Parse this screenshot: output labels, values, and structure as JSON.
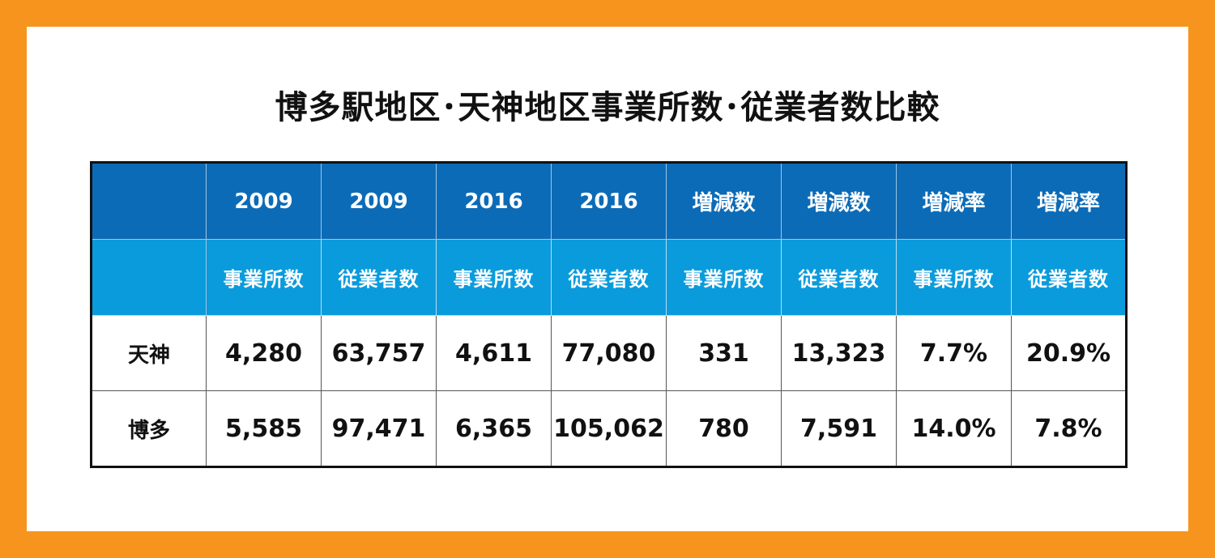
{
  "chart_data": {
    "type": "table",
    "title": "博多駅地区･天神地区事業所数･従業者数比較",
    "header_row_1": [
      "",
      "2009",
      "2009",
      "2016",
      "2016",
      "増減数",
      "増減数",
      "増減率",
      "増減率"
    ],
    "header_row_2": [
      "",
      "事業所数",
      "従業者数",
      "事業所数",
      "従業者数",
      "事業所数",
      "従業者数",
      "事業所数",
      "従業者数"
    ],
    "rows": [
      {
        "label": "天神",
        "cells": [
          "4,280",
          "63,757",
          "4,611",
          "77,080",
          "331",
          "13,323",
          "7.7%",
          "20.9%"
        ]
      },
      {
        "label": "博多",
        "cells": [
          "5,585",
          "97,471",
          "6,365",
          "105,062",
          "780",
          "7,591",
          "14.0%",
          "7.8%"
        ]
      }
    ]
  },
  "colors": {
    "frame": "#f7941d",
    "header_row_1": "#0c6bb7",
    "header_row_2": "#0a9bdc",
    "text": "#111111"
  }
}
